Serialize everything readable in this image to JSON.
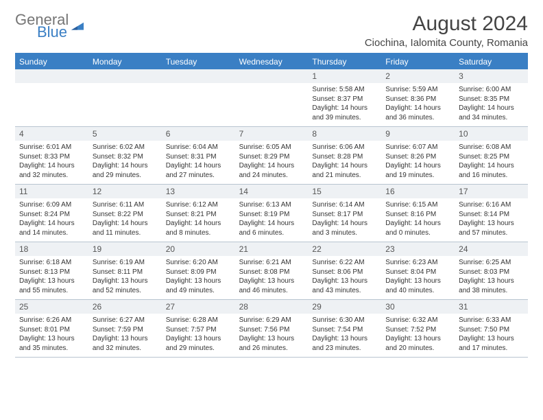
{
  "brand": {
    "name1": "General",
    "name2": "Blue"
  },
  "title": "August 2024",
  "location": "Ciochina, Ialomita County, Romania",
  "day_headers": [
    "Sunday",
    "Monday",
    "Tuesday",
    "Wednesday",
    "Thursday",
    "Friday",
    "Saturday"
  ],
  "colors": {
    "header_bg": "#3a7fc4",
    "header_text": "#ffffff",
    "datenum_bg": "#eef1f4",
    "border": "#b8c4d0",
    "body_text": "#333333",
    "title_text": "#444444"
  },
  "weeks": [
    {
      "dates": [
        "",
        "",
        "",
        "",
        "1",
        "2",
        "3"
      ],
      "cells": [
        null,
        null,
        null,
        null,
        {
          "sunrise": "Sunrise: 5:58 AM",
          "sunset": "Sunset: 8:37 PM",
          "daylight1": "Daylight: 14 hours",
          "daylight2": "and 39 minutes."
        },
        {
          "sunrise": "Sunrise: 5:59 AM",
          "sunset": "Sunset: 8:36 PM",
          "daylight1": "Daylight: 14 hours",
          "daylight2": "and 36 minutes."
        },
        {
          "sunrise": "Sunrise: 6:00 AM",
          "sunset": "Sunset: 8:35 PM",
          "daylight1": "Daylight: 14 hours",
          "daylight2": "and 34 minutes."
        }
      ]
    },
    {
      "dates": [
        "4",
        "5",
        "6",
        "7",
        "8",
        "9",
        "10"
      ],
      "cells": [
        {
          "sunrise": "Sunrise: 6:01 AM",
          "sunset": "Sunset: 8:33 PM",
          "daylight1": "Daylight: 14 hours",
          "daylight2": "and 32 minutes."
        },
        {
          "sunrise": "Sunrise: 6:02 AM",
          "sunset": "Sunset: 8:32 PM",
          "daylight1": "Daylight: 14 hours",
          "daylight2": "and 29 minutes."
        },
        {
          "sunrise": "Sunrise: 6:04 AM",
          "sunset": "Sunset: 8:31 PM",
          "daylight1": "Daylight: 14 hours",
          "daylight2": "and 27 minutes."
        },
        {
          "sunrise": "Sunrise: 6:05 AM",
          "sunset": "Sunset: 8:29 PM",
          "daylight1": "Daylight: 14 hours",
          "daylight2": "and 24 minutes."
        },
        {
          "sunrise": "Sunrise: 6:06 AM",
          "sunset": "Sunset: 8:28 PM",
          "daylight1": "Daylight: 14 hours",
          "daylight2": "and 21 minutes."
        },
        {
          "sunrise": "Sunrise: 6:07 AM",
          "sunset": "Sunset: 8:26 PM",
          "daylight1": "Daylight: 14 hours",
          "daylight2": "and 19 minutes."
        },
        {
          "sunrise": "Sunrise: 6:08 AM",
          "sunset": "Sunset: 8:25 PM",
          "daylight1": "Daylight: 14 hours",
          "daylight2": "and 16 minutes."
        }
      ]
    },
    {
      "dates": [
        "11",
        "12",
        "13",
        "14",
        "15",
        "16",
        "17"
      ],
      "cells": [
        {
          "sunrise": "Sunrise: 6:09 AM",
          "sunset": "Sunset: 8:24 PM",
          "daylight1": "Daylight: 14 hours",
          "daylight2": "and 14 minutes."
        },
        {
          "sunrise": "Sunrise: 6:11 AM",
          "sunset": "Sunset: 8:22 PM",
          "daylight1": "Daylight: 14 hours",
          "daylight2": "and 11 minutes."
        },
        {
          "sunrise": "Sunrise: 6:12 AM",
          "sunset": "Sunset: 8:21 PM",
          "daylight1": "Daylight: 14 hours",
          "daylight2": "and 8 minutes."
        },
        {
          "sunrise": "Sunrise: 6:13 AM",
          "sunset": "Sunset: 8:19 PM",
          "daylight1": "Daylight: 14 hours",
          "daylight2": "and 6 minutes."
        },
        {
          "sunrise": "Sunrise: 6:14 AM",
          "sunset": "Sunset: 8:17 PM",
          "daylight1": "Daylight: 14 hours",
          "daylight2": "and 3 minutes."
        },
        {
          "sunrise": "Sunrise: 6:15 AM",
          "sunset": "Sunset: 8:16 PM",
          "daylight1": "Daylight: 14 hours",
          "daylight2": "and 0 minutes."
        },
        {
          "sunrise": "Sunrise: 6:16 AM",
          "sunset": "Sunset: 8:14 PM",
          "daylight1": "Daylight: 13 hours",
          "daylight2": "and 57 minutes."
        }
      ]
    },
    {
      "dates": [
        "18",
        "19",
        "20",
        "21",
        "22",
        "23",
        "24"
      ],
      "cells": [
        {
          "sunrise": "Sunrise: 6:18 AM",
          "sunset": "Sunset: 8:13 PM",
          "daylight1": "Daylight: 13 hours",
          "daylight2": "and 55 minutes."
        },
        {
          "sunrise": "Sunrise: 6:19 AM",
          "sunset": "Sunset: 8:11 PM",
          "daylight1": "Daylight: 13 hours",
          "daylight2": "and 52 minutes."
        },
        {
          "sunrise": "Sunrise: 6:20 AM",
          "sunset": "Sunset: 8:09 PM",
          "daylight1": "Daylight: 13 hours",
          "daylight2": "and 49 minutes."
        },
        {
          "sunrise": "Sunrise: 6:21 AM",
          "sunset": "Sunset: 8:08 PM",
          "daylight1": "Daylight: 13 hours",
          "daylight2": "and 46 minutes."
        },
        {
          "sunrise": "Sunrise: 6:22 AM",
          "sunset": "Sunset: 8:06 PM",
          "daylight1": "Daylight: 13 hours",
          "daylight2": "and 43 minutes."
        },
        {
          "sunrise": "Sunrise: 6:23 AM",
          "sunset": "Sunset: 8:04 PM",
          "daylight1": "Daylight: 13 hours",
          "daylight2": "and 40 minutes."
        },
        {
          "sunrise": "Sunrise: 6:25 AM",
          "sunset": "Sunset: 8:03 PM",
          "daylight1": "Daylight: 13 hours",
          "daylight2": "and 38 minutes."
        }
      ]
    },
    {
      "dates": [
        "25",
        "26",
        "27",
        "28",
        "29",
        "30",
        "31"
      ],
      "cells": [
        {
          "sunrise": "Sunrise: 6:26 AM",
          "sunset": "Sunset: 8:01 PM",
          "daylight1": "Daylight: 13 hours",
          "daylight2": "and 35 minutes."
        },
        {
          "sunrise": "Sunrise: 6:27 AM",
          "sunset": "Sunset: 7:59 PM",
          "daylight1": "Daylight: 13 hours",
          "daylight2": "and 32 minutes."
        },
        {
          "sunrise": "Sunrise: 6:28 AM",
          "sunset": "Sunset: 7:57 PM",
          "daylight1": "Daylight: 13 hours",
          "daylight2": "and 29 minutes."
        },
        {
          "sunrise": "Sunrise: 6:29 AM",
          "sunset": "Sunset: 7:56 PM",
          "daylight1": "Daylight: 13 hours",
          "daylight2": "and 26 minutes."
        },
        {
          "sunrise": "Sunrise: 6:30 AM",
          "sunset": "Sunset: 7:54 PM",
          "daylight1": "Daylight: 13 hours",
          "daylight2": "and 23 minutes."
        },
        {
          "sunrise": "Sunrise: 6:32 AM",
          "sunset": "Sunset: 7:52 PM",
          "daylight1": "Daylight: 13 hours",
          "daylight2": "and 20 minutes."
        },
        {
          "sunrise": "Sunrise: 6:33 AM",
          "sunset": "Sunset: 7:50 PM",
          "daylight1": "Daylight: 13 hours",
          "daylight2": "and 17 minutes."
        }
      ]
    }
  ]
}
